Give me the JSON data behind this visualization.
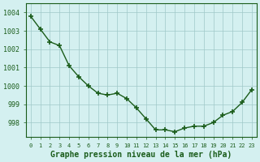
{
  "x": [
    0,
    1,
    2,
    3,
    4,
    5,
    6,
    7,
    8,
    9,
    10,
    11,
    12,
    13,
    14,
    15,
    16,
    17,
    18,
    19,
    20,
    21,
    22,
    23
  ],
  "y": [
    1003.8,
    1003.1,
    1002.4,
    1002.2,
    1001.1,
    1000.5,
    1000.0,
    999.6,
    999.5,
    999.6,
    999.3,
    998.8,
    998.2,
    997.6,
    997.6,
    997.5,
    997.7,
    997.8,
    997.8,
    998.0,
    998.4,
    998.6,
    999.1,
    999.8
  ],
  "line_color": "#1a5c1a",
  "marker_color": "#1a5c1a",
  "bg_color": "#d4f0f0",
  "grid_color": "#a0c8c8",
  "xlabel": "Graphe pression niveau de la mer (hPa)",
  "xlabel_color": "#1a5c1a",
  "tick_color": "#1a5c1a",
  "ylim": [
    997.2,
    1004.5
  ],
  "xlim": [
    -0.5,
    23.5
  ],
  "yticks": [
    998,
    999,
    1000,
    1001,
    1002,
    1003,
    1004
  ],
  "xticks": [
    0,
    1,
    2,
    3,
    4,
    5,
    6,
    7,
    8,
    9,
    10,
    11,
    12,
    13,
    14,
    15,
    16,
    17,
    18,
    19,
    20,
    21,
    22,
    23
  ],
  "xtick_labels": [
    "0",
    "1",
    "2",
    "3",
    "4",
    "5",
    "6",
    "7",
    "8",
    "9",
    "10",
    "11",
    "12",
    "13",
    "14",
    "15",
    "16",
    "17",
    "18",
    "19",
    "20",
    "21",
    "22",
    "23"
  ]
}
